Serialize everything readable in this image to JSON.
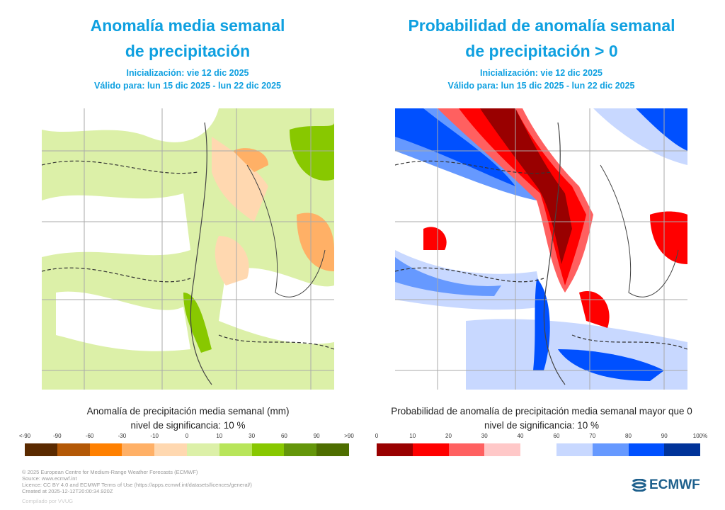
{
  "left": {
    "title_line1": "Anomalía media semanal",
    "title_line2": "de precipitación",
    "init": "Inicialización: vie 12 dic 2025",
    "valid": "Válido para: lun 15 dic 2025 - lun 22 dic 2025",
    "legend_title": "Anomalía de precipitación media semanal (mm)",
    "significance": "nivel de significancia: 10 %",
    "ticks": [
      "<-90",
      "-90",
      "-60",
      "-30",
      "-10",
      "0",
      "10",
      "30",
      "60",
      "90",
      ">90"
    ],
    "colors": [
      "#5a2a00",
      "#b35806",
      "#ff8000",
      "#ffb066",
      "#ffd8b0",
      "#dcf0a8",
      "#b8e55a",
      "#88c800",
      "#64960a",
      "#4e6e00"
    ]
  },
  "right": {
    "title_line1": "Probabilidad de anomalía semanal",
    "title_line2": "de precipitación > 0",
    "init": "Inicialización: vie 12 dic 2025",
    "valid": "Válido para: lun 15 dic 2025 - lun 22 dic 2025",
    "legend_title": "Probabilidad de anomalía de precipitación media semanal mayor que 0",
    "significance": "nivel de significancia: 10 %",
    "ticks": [
      "0",
      "10",
      "20",
      "30",
      "40",
      "60",
      "70",
      "80",
      "90",
      "100%"
    ],
    "colors_low": [
      "#990000",
      "#ff0000",
      "#ff6060",
      "#ffc8c8"
    ],
    "colors_high": [
      "#c8d8ff",
      "#6699ff",
      "#0050ff",
      "#003399"
    ]
  },
  "footer": {
    "line1": "© 2025 European Centre for Medium-Range Weather Forecasts (ECMWF)",
    "line2": "Source: www.ecmwf.int",
    "line3": "Licence: CC BY 4.0 and ECMWF Terms of Use (https://apps.ecmwf.int/datasets/licences/general/)",
    "line4": "Created at 2025-12-12T20:00:34.920Z",
    "compiled": "Compilado por VVUG"
  },
  "logo": {
    "text": "ECMWF"
  }
}
